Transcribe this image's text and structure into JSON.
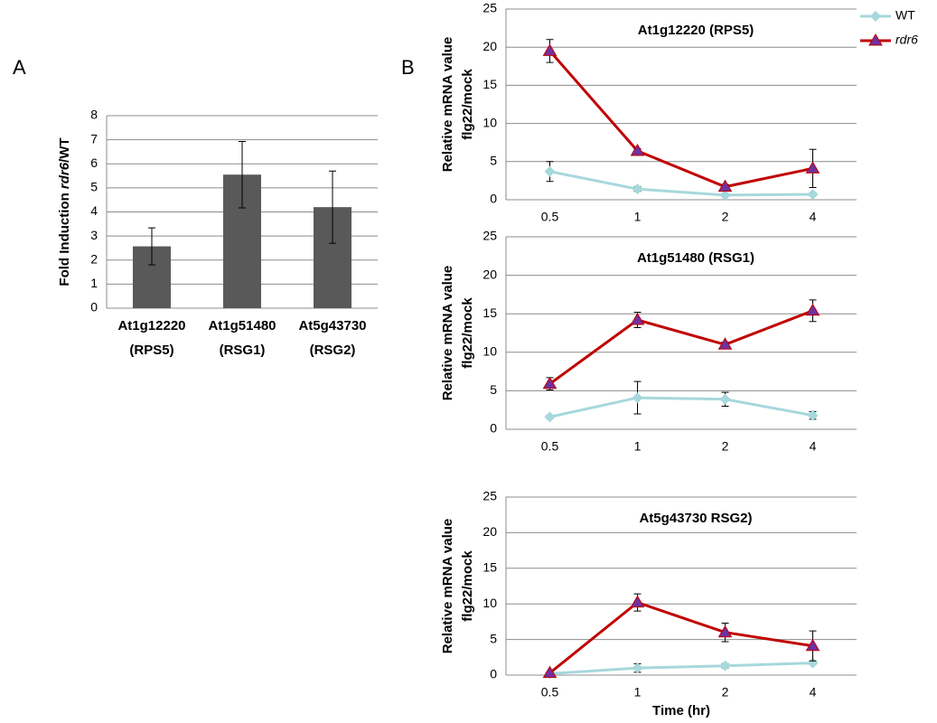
{
  "panel_labels": [
    "A",
    "B"
  ],
  "chart_data": [
    {
      "type": "bar",
      "ylabel": [
        "Fold Induction ",
        "rdr6",
        "/WT"
      ],
      "categories": [
        [
          "At1g12220",
          "(RPS5)"
        ],
        [
          "At1g51480",
          "(RSG1)"
        ],
        [
          "At5g43730",
          "(RSG2)"
        ]
      ],
      "values": [
        2.57,
        5.55,
        4.2
      ],
      "errors": [
        0.77,
        1.38,
        1.5
      ],
      "color": "#595959",
      "ylim": [
        0,
        8
      ],
      "yticks": [
        0,
        1,
        2,
        3,
        4,
        5,
        6,
        7,
        8
      ],
      "grid": true
    },
    {
      "type": "line",
      "title": "At1g12220 (RPS5)",
      "ylabel": [
        "Relative mRNA value",
        "flg22/mock"
      ],
      "categories": [
        "0.5",
        "1",
        "2",
        "4"
      ],
      "series": [
        {
          "name": "WT",
          "color": "#a6d8dc",
          "marker": "diamond",
          "marker_color": "#a6d8dc",
          "values": [
            3.7,
            1.4,
            0.6,
            0.7
          ],
          "errors": [
            1.3,
            0.3,
            0.2,
            0.2
          ]
        },
        {
          "name": "rdr6",
          "color": "#c00000",
          "marker": "triangle",
          "marker_color": "#7030a0",
          "values": [
            19.5,
            6.4,
            1.7,
            4.1
          ],
          "errors": [
            1.5,
            0.3,
            0.3,
            2.5
          ]
        }
      ],
      "ylim": [
        0,
        25
      ],
      "yticks": [
        0,
        5,
        10,
        15,
        20,
        25
      ],
      "grid": true,
      "legend": "top-right"
    },
    {
      "type": "line",
      "title": "At1g51480  (RSG1)",
      "ylabel": [
        "Relative mRNA value",
        "flg22/mock"
      ],
      "categories": [
        "0.5",
        "1",
        "2",
        "4"
      ],
      "series": [
        {
          "color": "#a6d8dc",
          "marker": "diamond",
          "marker_color": "#a6d8dc",
          "values": [
            1.6,
            4.1,
            3.9,
            1.8
          ],
          "errors": [
            0.2,
            2.1,
            0.9,
            0.5
          ]
        },
        {
          "color": "#c00000",
          "marker": "triangle",
          "marker_color": "#7030a0",
          "values": [
            5.9,
            14.2,
            11.0,
            15.4
          ],
          "errors": [
            0.8,
            1.0,
            0.3,
            1.4
          ]
        }
      ],
      "ylim": [
        0,
        25
      ],
      "yticks": [
        0,
        5,
        10,
        15,
        20,
        25
      ],
      "grid": true
    },
    {
      "type": "line",
      "title": "At5g43730 RSG2)",
      "ylabel": [
        "Relative mRNA value",
        "flg22/mock"
      ],
      "xlabel": "Time (hr)",
      "categories": [
        "0.5",
        "1",
        "2",
        "4"
      ],
      "series": [
        {
          "color": "#a6d8dc",
          "marker": "diamond",
          "marker_color": "#a6d8dc",
          "values": [
            0.2,
            1.0,
            1.3,
            1.7
          ],
          "errors": [
            0.1,
            0.6,
            0.3,
            0.2
          ]
        },
        {
          "color": "#c00000",
          "marker": "triangle",
          "marker_color": "#7030a0",
          "values": [
            0.3,
            10.2,
            6.0,
            4.1
          ],
          "errors": [
            0.1,
            1.2,
            1.3,
            2.1
          ]
        }
      ],
      "ylim": [
        0,
        25
      ],
      "yticks": [
        0,
        5,
        10,
        15,
        20,
        25
      ],
      "grid": true
    }
  ]
}
